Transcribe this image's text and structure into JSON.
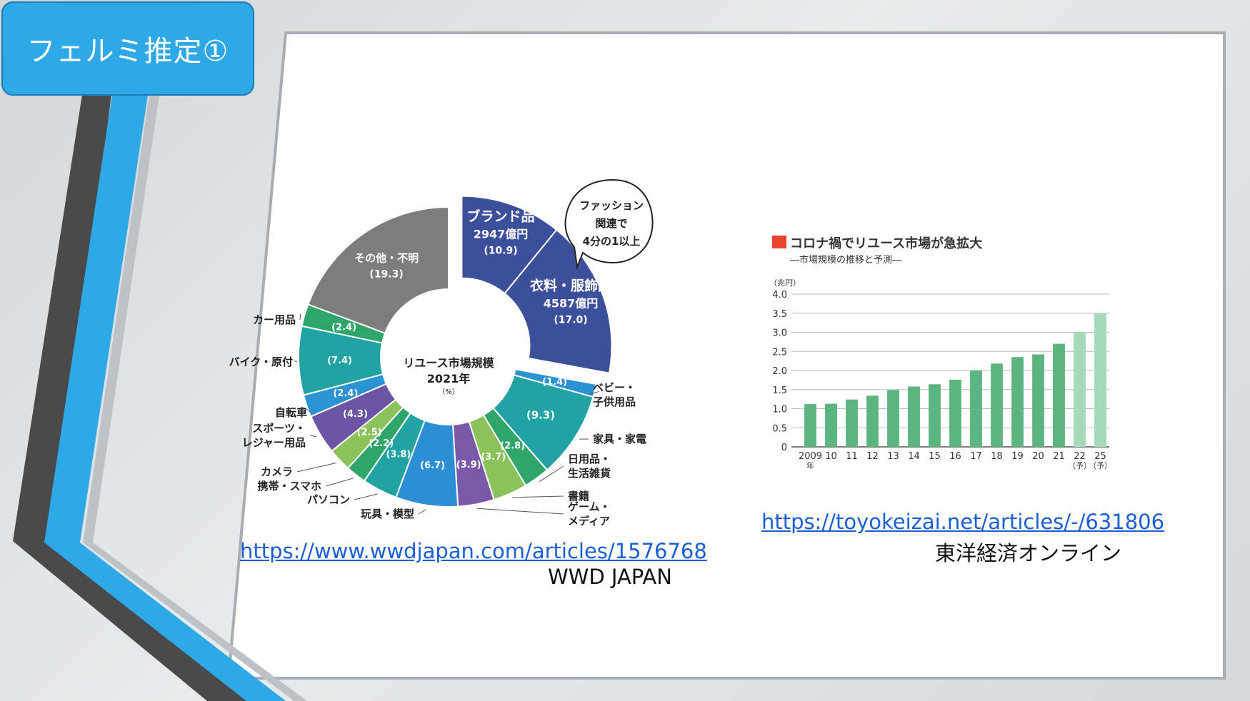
{
  "slide": {
    "title": "フェルミ推定①",
    "left_source_url": "https://www.wwdjapan.com/articles/1576768",
    "left_source_name": "WWD JAPAN",
    "right_source_url": "https://toyokeizai.net/articles/-/631806",
    "right_source_name": "東洋経済オンライン"
  },
  "colors": {
    "blue_accent": "#2ea8e6",
    "dark_stripe": "#4a4a4a",
    "bar_green": "#5cb47f",
    "bar_forecast": "#a5d9b8",
    "title_marker": "#e8452c"
  },
  "chart_data": [
    {
      "type": "pie",
      "center_title": "リユース市場規模",
      "center_year": "2021年",
      "center_unit": "（%）",
      "callout": [
        "ファッション",
        "関連で",
        "4分の1以上"
      ],
      "slices": [
        {
          "key": "s0",
          "label": "ブランド品",
          "amount": "2947",
          "amount_unit": "億円",
          "value": 10.9,
          "color": "#3c4f9a",
          "exploded": true
        },
        {
          "key": "s1",
          "label": "衣料・服飾品",
          "amount": "4587",
          "amount_unit": "億円",
          "value": 17.0,
          "color": "#3c4f9a",
          "exploded": true
        },
        {
          "key": "s2",
          "label": "ベビー・子供用品",
          "value": 1.4,
          "color": "#2b93d3"
        },
        {
          "key": "s3",
          "label": "家具・家電",
          "value": 9.3,
          "color": "#22a3a3"
        },
        {
          "key": "s4",
          "label": "日用品・生活雑貨",
          "value": 2.8,
          "color": "#2fa56a"
        },
        {
          "key": "s5",
          "label": "書籍",
          "value": 3.7,
          "color": "#8cc25a"
        },
        {
          "key": "s6",
          "label": "ゲーム・メディア",
          "value": 3.9,
          "color": "#7a5aa8"
        },
        {
          "key": "s7",
          "label": "玩具・模型",
          "value": 6.7,
          "color": "#2c8fd6"
        },
        {
          "key": "s8",
          "label": "パソコン",
          "value": 3.8,
          "color": "#22a3a3"
        },
        {
          "key": "s9",
          "label": "携帯・スマホ",
          "value": 2.2,
          "color": "#2fa56a"
        },
        {
          "key": "s10",
          "label": "カメラ",
          "value": 2.5,
          "color": "#8cc25a"
        },
        {
          "key": "s11",
          "label": "スポーツ・レジャー用品",
          "value": 4.3,
          "color": "#6b55a4"
        },
        {
          "key": "s12",
          "label": "自転車",
          "value": 2.4,
          "color": "#2b93d3"
        },
        {
          "key": "s13",
          "label": "バイク・原付",
          "value": 7.4,
          "color": "#22a3a3"
        },
        {
          "key": "s14",
          "label": "カー用品",
          "value": 2.4,
          "color": "#2fa56a"
        },
        {
          "key": "s15",
          "label": "その他・不明",
          "value": 19.3,
          "color": "#7d7d7d"
        }
      ]
    },
    {
      "type": "bar",
      "title": "コロナ禍でリユース市場が急拡大",
      "subtitle": "―市場規模の推移と予測―",
      "ylabel": "（兆円）",
      "ylim": [
        0,
        4.0
      ],
      "yticks": [
        "4.0",
        "3.5",
        "3.0",
        "2.5",
        "2.0",
        "1.5",
        "1.0",
        "0.5",
        "0"
      ],
      "grid": true,
      "categories": [
        "2009",
        "10",
        "11",
        "12",
        "13",
        "14",
        "15",
        "16",
        "17",
        "18",
        "19",
        "20",
        "21",
        "22",
        "25"
      ],
      "category_suffix": [
        "年",
        "",
        "",
        "",
        "",
        "",
        "",
        "",
        "",
        "",
        "",
        "",
        "",
        "（予）",
        "（予）"
      ],
      "values": [
        1.12,
        1.13,
        1.24,
        1.34,
        1.49,
        1.58,
        1.64,
        1.76,
        2.0,
        2.18,
        2.35,
        2.42,
        2.7,
        3.0,
        3.5
      ],
      "forecast": [
        false,
        false,
        false,
        false,
        false,
        false,
        false,
        false,
        false,
        false,
        false,
        false,
        false,
        true,
        true
      ]
    }
  ]
}
